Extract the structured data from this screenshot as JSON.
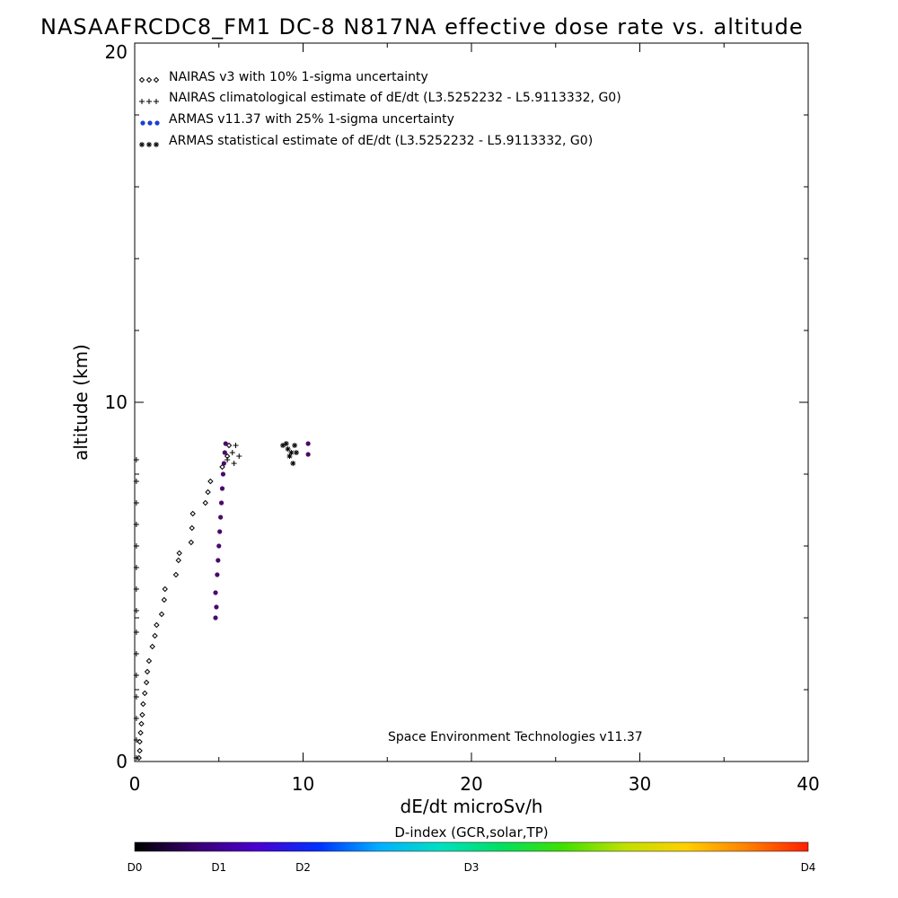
{
  "chart_data": {
    "type": "scatter",
    "title": "NASAAFRCDC8_FM1 DC-8   N817NA effective dose rate vs. altitude",
    "xlabel": "dE/dt microSv/h",
    "ylabel": "altitude (km)",
    "xlim": [
      0,
      40
    ],
    "ylim": [
      0,
      20
    ],
    "x_ticks": [
      "0",
      "10",
      "20",
      "30",
      "40"
    ],
    "y_ticks": [
      "0",
      "10",
      "20"
    ],
    "legend_position": "top-left",
    "credit": "Space Environment Technologies v11.37",
    "series": [
      {
        "name": "NAIRAS v3 with 10% 1-sigma uncertainty",
        "marker": "diamond",
        "color": "#000000",
        "points": [
          [
            0.25,
            0.1
          ],
          [
            0.3,
            0.3
          ],
          [
            0.3,
            0.55
          ],
          [
            0.35,
            0.8
          ],
          [
            0.4,
            1.05
          ],
          [
            0.45,
            1.3
          ],
          [
            0.5,
            1.6
          ],
          [
            0.6,
            1.9
          ],
          [
            0.7,
            2.2
          ],
          [
            0.75,
            2.5
          ],
          [
            0.85,
            2.8
          ],
          [
            1.05,
            3.2
          ],
          [
            1.2,
            3.5
          ],
          [
            1.3,
            3.8
          ],
          [
            1.6,
            4.1
          ],
          [
            1.75,
            4.5
          ],
          [
            1.8,
            4.8
          ],
          [
            2.45,
            5.2
          ],
          [
            2.6,
            5.6
          ],
          [
            2.65,
            5.8
          ],
          [
            3.35,
            6.1
          ],
          [
            3.4,
            6.5
          ],
          [
            3.45,
            6.9
          ],
          [
            4.2,
            7.2
          ],
          [
            4.35,
            7.5
          ],
          [
            4.5,
            7.8
          ],
          [
            5.2,
            8.2
          ],
          [
            5.5,
            8.5
          ],
          [
            5.6,
            8.8
          ]
        ]
      },
      {
        "name": "NAIRAS climatological estimate of dE/dt (L3.5252232 - L5.9113332, G0)",
        "marker": "plus",
        "color": "#000000",
        "points": [
          [
            0.1,
            0.1
          ],
          [
            0.1,
            0.6
          ],
          [
            0.1,
            1.2
          ],
          [
            0.1,
            1.8
          ],
          [
            0.1,
            2.4
          ],
          [
            0.1,
            3.0
          ],
          [
            0.1,
            3.6
          ],
          [
            0.1,
            4.2
          ],
          [
            0.1,
            4.8
          ],
          [
            0.1,
            5.4
          ],
          [
            0.1,
            6.0
          ],
          [
            0.1,
            6.6
          ],
          [
            0.1,
            7.2
          ],
          [
            0.1,
            7.8
          ],
          [
            0.1,
            8.4
          ],
          [
            5.5,
            8.4
          ],
          [
            5.8,
            8.6
          ],
          [
            6.0,
            8.8
          ],
          [
            6.2,
            8.5
          ],
          [
            5.9,
            8.3
          ]
        ]
      },
      {
        "name": "ARMAS v11.37 with 25% 1-sigma uncertainty",
        "marker": "dot",
        "color": "#1a3fd1",
        "points": [
          [
            4.8,
            4.0
          ],
          [
            4.85,
            4.3
          ],
          [
            4.8,
            4.7
          ],
          [
            4.9,
            5.2
          ],
          [
            4.95,
            5.6
          ],
          [
            5.0,
            6.0
          ],
          [
            5.05,
            6.4
          ],
          [
            5.1,
            6.8
          ],
          [
            5.15,
            7.2
          ],
          [
            5.2,
            7.6
          ],
          [
            5.25,
            8.0
          ],
          [
            5.3,
            8.3
          ],
          [
            5.35,
            8.6
          ],
          [
            5.4,
            8.85
          ],
          [
            10.3,
            8.55
          ],
          [
            10.3,
            8.85
          ]
        ]
      },
      {
        "name": "ARMAS statistical estimate of dE/dt (L3.5252232 - L5.9113332, G0)",
        "marker": "asterisk",
        "color": "#000000",
        "points": [
          [
            8.8,
            8.8
          ],
          [
            9.1,
            8.7
          ],
          [
            9.3,
            8.6
          ],
          [
            9.5,
            8.8
          ],
          [
            9.2,
            8.5
          ],
          [
            9.4,
            8.3
          ],
          [
            9.0,
            8.85
          ],
          [
            9.6,
            8.6
          ]
        ]
      }
    ],
    "colorbar": {
      "title": "D-index (GCR,solar,TP)",
      "labels": [
        {
          "text": "D0",
          "value": 0.0
        },
        {
          "text": "D1",
          "value": 0.125
        },
        {
          "text": "D2",
          "value": 0.25
        },
        {
          "text": "D3",
          "value": 0.5
        },
        {
          "text": "D4",
          "value": 1.0
        }
      ],
      "colors": [
        "#000000",
        "#3a0070",
        "#4a00d0",
        "#0030ff",
        "#00b0ff",
        "#00e0c0",
        "#00e060",
        "#40e000",
        "#c0e000",
        "#ffd000",
        "#ff8000",
        "#ff2000"
      ]
    }
  }
}
